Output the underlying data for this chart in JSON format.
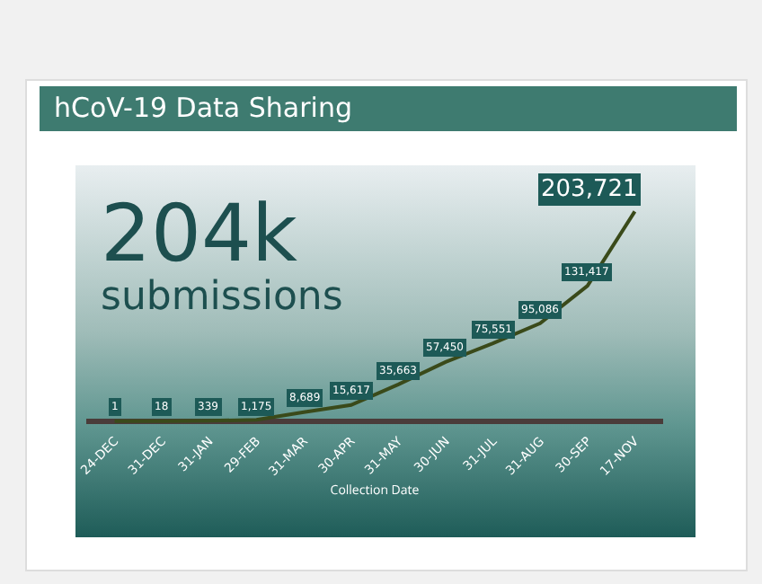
{
  "chart_data": {
    "type": "line",
    "title": "hCoV-19 Data Sharing",
    "xlabel": "Collection Date",
    "annotations": [
      "204k",
      "submissions"
    ],
    "categories": [
      "24-DEC",
      "31-DEC",
      "31-JAN",
      "29-FEB",
      "31-MAR",
      "30-APR",
      "31-MAY",
      "30-JUN",
      "31-JUL",
      "31-AUG",
      "30-SEP",
      "17-NOV"
    ],
    "values": [
      1,
      18,
      339,
      1175,
      8689,
      15617,
      35663,
      57450,
      75551,
      95086,
      131417,
      203721
    ],
    "value_labels": [
      "1",
      "18",
      "339",
      "1,175",
      "8,689",
      "15,617",
      "35,663",
      "57,450",
      "75,551",
      "95,086",
      "131,417",
      "203,721"
    ],
    "color": "#3a4a1a",
    "grid": false,
    "marker": "none",
    "line_style": "solid"
  }
}
